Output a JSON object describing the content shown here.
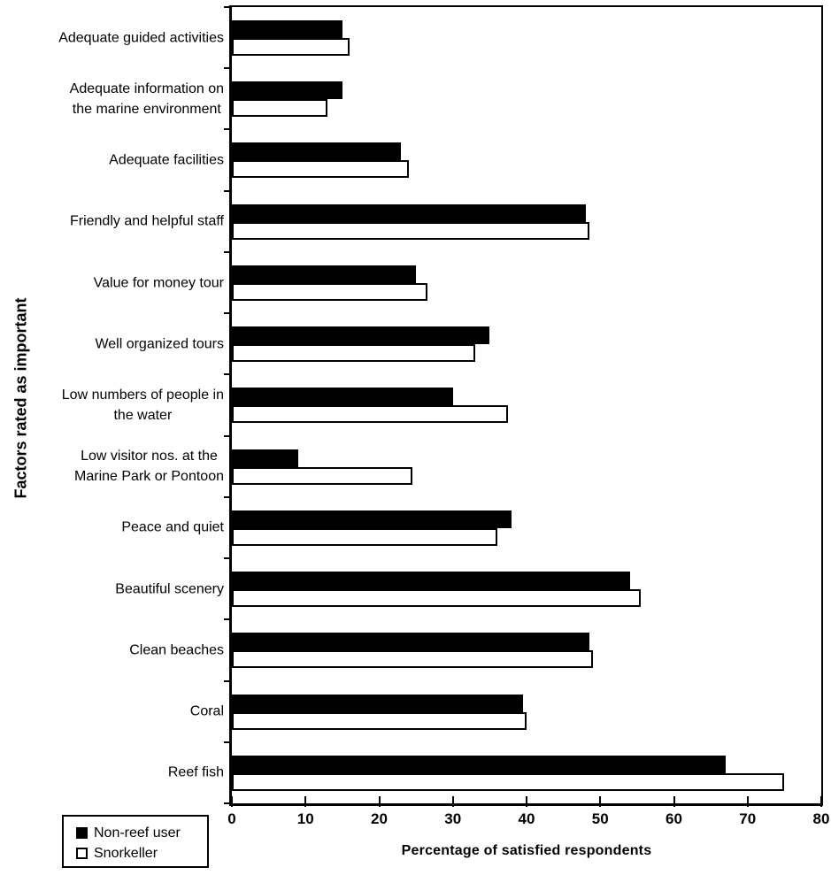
{
  "chart_data": {
    "type": "bar",
    "orientation": "horizontal",
    "title": "",
    "xlabel": "Percentage of satisfied respondents",
    "ylabel": "Factors rated as important",
    "xlim": [
      0,
      80
    ],
    "xticks": [
      0,
      10,
      20,
      30,
      40,
      50,
      60,
      70,
      80
    ],
    "grid": false,
    "legend_position": "bottom-left",
    "categories": [
      "Adequate guided activities",
      "Adequate information on\nthe marine environment",
      "Adequate facilities",
      "Friendly and helpful staff",
      "Value for money tour",
      "Well organized tours",
      "Low numbers of people in\nthe water",
      "Low visitor nos. at the\nMarine Park or Pontoon",
      "Peace and quiet",
      "Beautiful scenery",
      "Clean beaches",
      "Coral",
      "Reef fish"
    ],
    "series": [
      {
        "name": "Non-reef user",
        "color": "#000000",
        "values": [
          15,
          15,
          23,
          48,
          25,
          35,
          30,
          9,
          38,
          54,
          48.5,
          39.5,
          67
        ]
      },
      {
        "name": "Snorkeller",
        "color": "#ffffff",
        "values": [
          16,
          13,
          24,
          48.5,
          26.5,
          33,
          37.5,
          24.5,
          36,
          55.5,
          49,
          40,
          75
        ]
      }
    ]
  }
}
